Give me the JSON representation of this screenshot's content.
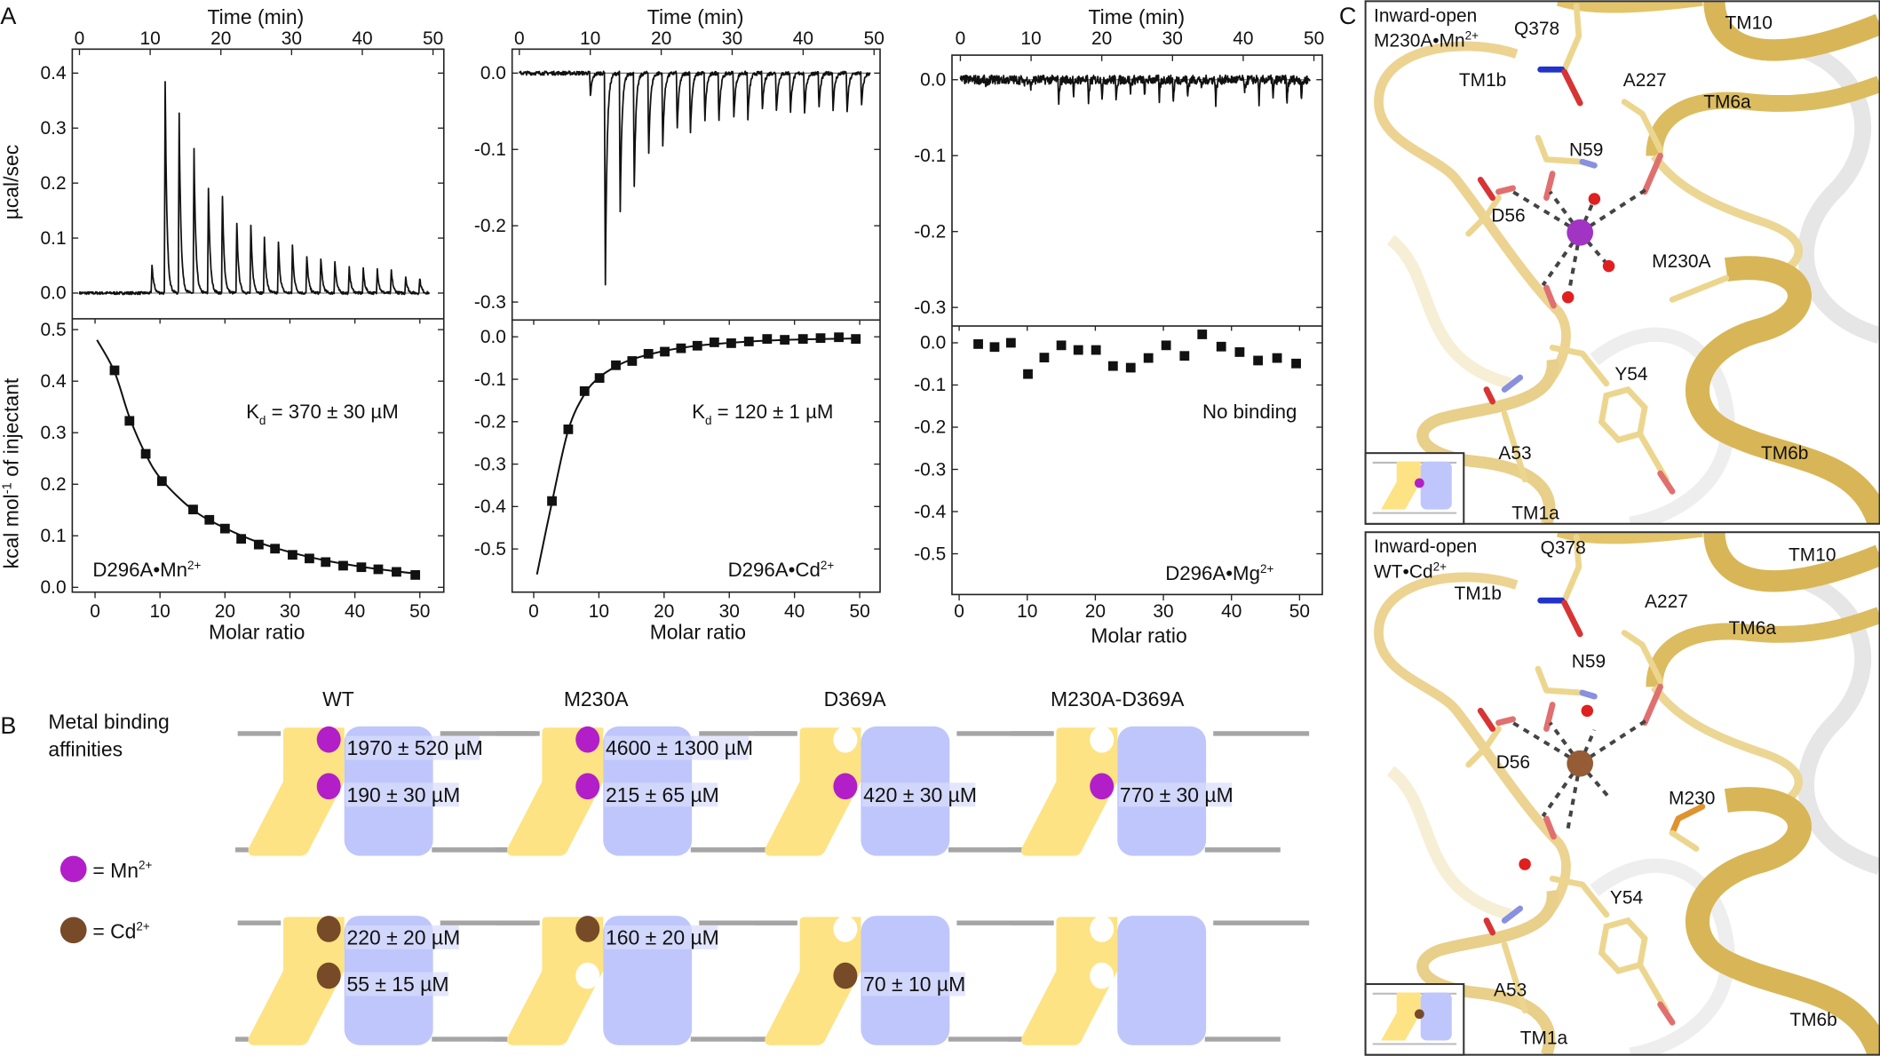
{
  "panel_labels": {
    "a": "A",
    "b": "B",
    "c": "C"
  },
  "panel_a": {
    "time_axis_label": "Time (min)",
    "molar_axis_label": "Molar ratio",
    "y_top_label": "µcal/sec",
    "y_bottom_label": {
      "pre": "kcal mol",
      "sup": "-1",
      "post": " of injectant"
    }
  },
  "chart_data": [
    {
      "type": "line+scatter",
      "sample_label": {
        "text": "D296A•Mn",
        "sup": "2+"
      },
      "annotation": {
        "pre": "K",
        "sub": "d",
        "post": " = 370 ± 30 µM"
      },
      "thermogram": {
        "xlabel": "Time (min)",
        "ylabel": "µcal/sec",
        "xlim": [
          0,
          50
        ],
        "xticks": [
          0,
          10,
          20,
          30,
          40,
          50
        ],
        "ylim": [
          0.0,
          0.4
        ],
        "yticks": [
          "0.0",
          "0.1",
          "0.2",
          "0.3",
          "0.4"
        ],
        "injection_peaks": [
          [
            10.25,
            0.054
          ],
          [
            12.1,
            0.414
          ],
          [
            14.1,
            0.325
          ],
          [
            16.2,
            0.262
          ],
          [
            18.2,
            0.224
          ],
          [
            20.2,
            0.19
          ],
          [
            22.2,
            0.163
          ],
          [
            24.2,
            0.143
          ],
          [
            26.1,
            0.126
          ],
          [
            28.1,
            0.109
          ],
          [
            30.1,
            0.094
          ],
          [
            32.1,
            0.084
          ],
          [
            34.1,
            0.075
          ],
          [
            36.1,
            0.064
          ],
          [
            38.1,
            0.058
          ],
          [
            40.1,
            0.051
          ],
          [
            42.1,
            0.048
          ],
          [
            44.1,
            0.041
          ],
          [
            46.1,
            0.035
          ],
          [
            48.1,
            0.03
          ]
        ]
      },
      "isotherm": {
        "xlabel": "Molar ratio",
        "ylabel": "kcal mol-1 of injectant",
        "xlim": [
          0,
          50
        ],
        "xticks": [
          0,
          10,
          20,
          30,
          40,
          50
        ],
        "ylim": [
          0.0,
          0.5
        ],
        "yticks": [
          "0.0",
          "0.1",
          "0.2",
          "0.3",
          "0.4",
          "0.5"
        ],
        "points": [
          [
            3.0,
            0.421
          ],
          [
            5.3,
            0.323
          ],
          [
            7.8,
            0.259
          ],
          [
            10.3,
            0.206
          ],
          [
            15.1,
            0.151
          ],
          [
            17.6,
            0.131
          ],
          [
            20.0,
            0.114
          ],
          [
            22.5,
            0.094
          ],
          [
            25.2,
            0.083
          ],
          [
            27.7,
            0.075
          ],
          [
            30.4,
            0.063
          ],
          [
            33.0,
            0.056
          ],
          [
            35.5,
            0.049
          ],
          [
            38.2,
            0.042
          ],
          [
            41.0,
            0.039
          ],
          [
            43.6,
            0.035
          ],
          [
            46.4,
            0.03
          ],
          [
            49.3,
            0.024
          ]
        ],
        "fit_curve": [
          [
            0.3,
            0.48
          ],
          [
            3.0,
            0.418
          ],
          [
            5.3,
            0.33
          ],
          [
            7.8,
            0.258
          ],
          [
            10.3,
            0.208
          ],
          [
            15.1,
            0.15
          ],
          [
            20.0,
            0.115
          ],
          [
            25.2,
            0.087
          ],
          [
            30.4,
            0.067
          ],
          [
            35.5,
            0.052
          ],
          [
            41.0,
            0.04
          ],
          [
            46.4,
            0.031
          ],
          [
            49.3,
            0.027
          ]
        ]
      }
    },
    {
      "type": "line+scatter",
      "sample_label": {
        "text": "D296A•Cd",
        "sup": "2+"
      },
      "annotation": {
        "pre": "K",
        "sub": "d",
        "post": " = 120 ± 1 µM"
      },
      "thermogram": {
        "xlabel": "Time (min)",
        "xlim": [
          0,
          50
        ],
        "xticks": [
          0,
          10,
          20,
          30,
          40,
          50
        ],
        "ylim": [
          -0.3,
          0.0
        ],
        "yticks": [
          "0.0",
          "-0.1",
          "-0.2",
          "-0.3"
        ],
        "injection_peaks": [
          [
            10.0,
            -0.033
          ],
          [
            12.1,
            -0.3
          ],
          [
            14.2,
            -0.198
          ],
          [
            16.2,
            -0.147
          ],
          [
            18.2,
            -0.122
          ],
          [
            20.2,
            -0.103
          ],
          [
            22.2,
            -0.092
          ],
          [
            24.1,
            -0.085
          ],
          [
            26.1,
            -0.077
          ],
          [
            28.1,
            -0.072
          ],
          [
            30.2,
            -0.068
          ],
          [
            32.2,
            -0.064
          ],
          [
            34.2,
            -0.061
          ],
          [
            36.2,
            -0.058
          ],
          [
            38.2,
            -0.056
          ],
          [
            40.2,
            -0.054
          ],
          [
            42.2,
            -0.053
          ],
          [
            44.2,
            -0.052
          ],
          [
            46.2,
            -0.052
          ],
          [
            48.2,
            -0.051
          ]
        ]
      },
      "isotherm": {
        "xlabel": "Molar ratio",
        "xlim": [
          0,
          50
        ],
        "xticks": [
          0,
          10,
          20,
          30,
          40,
          50
        ],
        "ylim": [
          -0.5,
          0.0
        ],
        "yticks": [
          "0.0",
          "-0.1",
          "-0.2",
          "-0.3",
          "-0.4",
          "-0.5"
        ],
        "points": [
          [
            2.8,
            -0.387
          ],
          [
            5.3,
            -0.218
          ],
          [
            7.8,
            -0.128
          ],
          [
            10.1,
            -0.097
          ],
          [
            12.6,
            -0.067
          ],
          [
            15.1,
            -0.057
          ],
          [
            17.6,
            -0.04
          ],
          [
            20.1,
            -0.035
          ],
          [
            22.6,
            -0.027
          ],
          [
            25.1,
            -0.021
          ],
          [
            27.7,
            -0.013
          ],
          [
            30.3,
            -0.015
          ],
          [
            33.0,
            -0.011
          ],
          [
            35.8,
            -0.005
          ],
          [
            38.5,
            -0.007
          ],
          [
            41.3,
            -0.005
          ],
          [
            44.0,
            -0.003
          ],
          [
            46.8,
            -0.001
          ],
          [
            49.4,
            -0.005
          ]
        ],
        "fit_curve": [
          [
            0.5,
            -0.56
          ],
          [
            2.8,
            -0.39
          ],
          [
            5.3,
            -0.22
          ],
          [
            7.8,
            -0.135
          ],
          [
            10.1,
            -0.095
          ],
          [
            12.6,
            -0.07
          ],
          [
            15.1,
            -0.053
          ],
          [
            20.1,
            -0.033
          ],
          [
            25.1,
            -0.021
          ],
          [
            30.3,
            -0.014
          ],
          [
            35.8,
            -0.009
          ],
          [
            41.3,
            -0.006
          ],
          [
            49.4,
            -0.004
          ]
        ]
      }
    },
    {
      "type": "line+scatter",
      "sample_label": {
        "text": "D296A•Mg",
        "sup": "2+"
      },
      "annotation": {
        "text": "No binding"
      },
      "thermogram": {
        "xlabel": "Time (min)",
        "xlim": [
          0,
          50
        ],
        "xticks": [
          0,
          10,
          20,
          30,
          40,
          50
        ],
        "ylim": [
          -0.3,
          0.0
        ],
        "yticks": [
          "0.0",
          "-0.1",
          "-0.2",
          "-0.3"
        ],
        "injection_peaks": [
          [
            3.6,
            -0.012
          ],
          [
            8.9,
            -0.01
          ],
          [
            9.9,
            -0.018
          ],
          [
            13.9,
            -0.034
          ],
          [
            16.0,
            -0.027
          ],
          [
            18.1,
            -0.04
          ],
          [
            20.0,
            -0.03
          ],
          [
            22.0,
            -0.027
          ],
          [
            24.0,
            -0.025
          ],
          [
            26.0,
            -0.028
          ],
          [
            28.1,
            -0.036
          ],
          [
            30.1,
            -0.035
          ],
          [
            32.1,
            -0.036
          ],
          [
            34.1,
            -0.02
          ],
          [
            36.1,
            -0.038
          ],
          [
            40.2,
            -0.022
          ],
          [
            42.2,
            -0.04
          ],
          [
            44.2,
            -0.03
          ],
          [
            46.2,
            -0.035
          ],
          [
            48.2,
            -0.034
          ]
        ]
      },
      "isotherm": {
        "xlabel": "Molar ratio",
        "xlim": [
          0,
          50
        ],
        "xticks": [
          0,
          10,
          20,
          30,
          40,
          50
        ],
        "ylim": [
          -0.5,
          0.0
        ],
        "yticks": [
          "0.0",
          "-0.1",
          "-0.2",
          "-0.3",
          "-0.4",
          "-0.5"
        ],
        "points": [
          [
            2.8,
            -0.003
          ],
          [
            5.2,
            -0.01
          ],
          [
            7.6,
            0.0
          ],
          [
            10.1,
            -0.074
          ],
          [
            12.5,
            -0.035
          ],
          [
            15.0,
            -0.006
          ],
          [
            17.5,
            -0.017
          ],
          [
            20.1,
            -0.017
          ],
          [
            22.6,
            -0.055
          ],
          [
            25.2,
            -0.059
          ],
          [
            27.8,
            -0.036
          ],
          [
            30.4,
            -0.006
          ],
          [
            33.1,
            -0.031
          ],
          [
            35.7,
            0.02
          ],
          [
            38.5,
            -0.009
          ],
          [
            41.2,
            -0.022
          ],
          [
            43.9,
            -0.042
          ],
          [
            46.7,
            -0.036
          ],
          [
            49.5,
            -0.049
          ]
        ]
      }
    }
  ],
  "panel_b": {
    "title_line1": "Metal binding",
    "title_line2": "affinities",
    "legend": [
      {
        "label": "= Mn",
        "sup": "2+",
        "color": "#b21fc8"
      },
      {
        "label": "= Cd",
        "sup": "2+",
        "color": "#774a28"
      }
    ],
    "constructs": [
      {
        "name": "WT",
        "mn": {
          "upper": {
            "occupied": true,
            "kd": "1970 ± 520 µM"
          },
          "lower": {
            "occupied": true,
            "kd": "190 ± 30 µM"
          }
        },
        "cd": {
          "upper": {
            "occupied": true,
            "kd": "220 ± 20 µM"
          },
          "lower": {
            "occupied": true,
            "kd": "55 ± 15 µM"
          }
        }
      },
      {
        "name": "M230A",
        "mn": {
          "upper": {
            "occupied": true,
            "kd": "4600 ± 1300 µM"
          },
          "lower": {
            "occupied": true,
            "kd": "215 ± 65 µM"
          }
        },
        "cd": {
          "upper": {
            "occupied": true,
            "kd": "160 ± 20 µM"
          },
          "lower": {
            "occupied": false,
            "kd": ""
          }
        }
      },
      {
        "name": "D369A",
        "mn": {
          "upper": {
            "occupied": false,
            "kd": ""
          },
          "lower": {
            "occupied": true,
            "kd": "420 ± 30 µM"
          }
        },
        "cd": {
          "upper": {
            "occupied": false,
            "kd": ""
          },
          "lower": {
            "occupied": true,
            "kd": "70 ± 10 µM"
          }
        }
      },
      {
        "name": "M230A-D369A",
        "mn": {
          "upper": {
            "occupied": false,
            "kd": ""
          },
          "lower": {
            "occupied": true,
            "kd": "770 ± 30 µM"
          }
        },
        "cd": {
          "upper": {
            "occupied": false,
            "kd": ""
          },
          "lower": {
            "occupied": false,
            "kd": ""
          }
        }
      }
    ],
    "colors": {
      "yellow": "#fde383",
      "blue": "#bfc6fb",
      "membrane": "#a5a5a5",
      "mn": "#b21fc8",
      "cd": "#774a28"
    }
  },
  "panel_c": {
    "top": {
      "title_line1": "Inward-open",
      "title_line2": "M230A•Mn",
      "title_sup": "2+",
      "labels": {
        "q378": "Q378",
        "tm10": "TM10",
        "tm1b": "TM1b",
        "a227": "A227",
        "tm6a": "TM6a",
        "n59": "N59",
        "d56": "D56",
        "m230": "M230A",
        "y54": "Y54",
        "a53": "A53",
        "tm1a": "TM1a",
        "tm6b": "TM6b"
      },
      "metal_color": "#a234c4"
    },
    "bottom": {
      "title_line1": "Inward-open",
      "title_line2": "WT•Cd",
      "title_sup": "2+",
      "labels": {
        "q378": "Q378",
        "tm10": "TM10",
        "tm1b": "TM1b",
        "a227": "A227",
        "tm6a": "TM6a",
        "n59": "N59",
        "d56": "D56",
        "m230": "M230",
        "y54": "Y54",
        "a53": "A53",
        "tm1a": "TM1a",
        "tm6b": "TM6b"
      },
      "metal_color": "#955c36"
    }
  }
}
